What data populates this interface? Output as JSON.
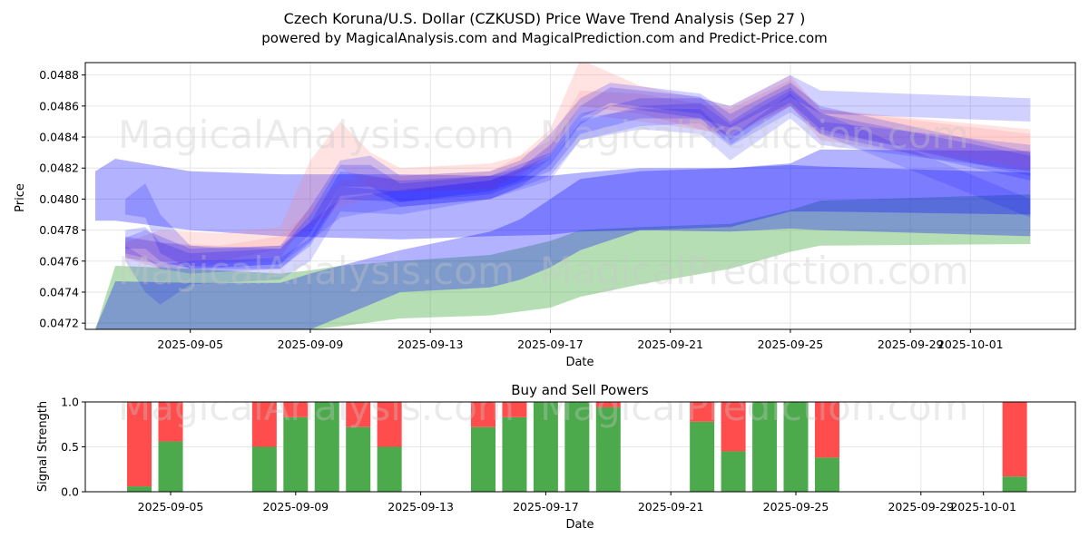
{
  "chart_data": [
    {
      "type": "area",
      "title": "Czech Koruna/U.S. Dollar (CZKUSD) Price Wave Trend Analysis (Sep 27 )",
      "subtitle": "powered by MagicalAnalysis.com and MagicalPrediction.com and Predict-Price.com",
      "xlabel": "Date",
      "ylabel": "Price",
      "xlim": [
        "2025-09-01T12:00",
        "2025-10-04T12:00"
      ],
      "ylim": [
        0.04716,
        0.04888
      ],
      "x_ticks": [
        "2025-09-05",
        "2025-09-09",
        "2025-09-13",
        "2025-09-17",
        "2025-09-21",
        "2025-09-25",
        "2025-09-29",
        "2025-10-01"
      ],
      "y_ticks": [
        "0.0472",
        "0.0474",
        "0.0476",
        "0.0478",
        "0.0480",
        "0.0482",
        "0.0484",
        "0.0486",
        "0.0488"
      ],
      "grid": true,
      "watermarks": [
        "MagicalAnalysis.com",
        "MagicalPrediction.com",
        "MagicalAnalysis.com",
        "MagicalPrediction.com"
      ],
      "bands": [
        {
          "name": "support-green",
          "color": "#2ca02c",
          "opacity": 0.35,
          "x": [
            "2025-09-01T20:00",
            "2025-09-02T12:00",
            "2025-09-05",
            "2025-09-08",
            "2025-09-09",
            "2025-09-10",
            "2025-09-12",
            "2025-09-15",
            "2025-09-17",
            "2025-09-18",
            "2025-09-20",
            "2025-09-23",
            "2025-09-25",
            "2025-09-26",
            "2025-10-03"
          ],
          "upper": [
            0.04716,
            0.04757,
            0.04755,
            0.04752,
            0.04754,
            0.04757,
            0.0476,
            0.04764,
            0.04773,
            0.0478,
            0.04782,
            0.04784,
            0.04793,
            0.04799,
            0.04803
          ],
          "lower": [
            0.04716,
            0.04716,
            0.04716,
            0.04716,
            0.04716,
            0.04718,
            0.04723,
            0.04725,
            0.0473,
            0.04737,
            0.04745,
            0.04755,
            0.04766,
            0.0477,
            0.04771
          ]
        },
        {
          "name": "channel-blue",
          "color": "#0000ff",
          "opacity": 0.3,
          "x": [
            "2025-09-01T20:00",
            "2025-09-02T12:00",
            "2025-09-05",
            "2025-09-08",
            "2025-09-09",
            "2025-09-12",
            "2025-09-15",
            "2025-09-16",
            "2025-09-17",
            "2025-09-18",
            "2025-09-20",
            "2025-09-23",
            "2025-09-25",
            "2025-09-26",
            "2025-10-03"
          ],
          "upper": [
            0.04716,
            0.04747,
            0.04746,
            0.04746,
            0.04752,
            0.04767,
            0.04779,
            0.04787,
            0.048,
            0.04813,
            0.04818,
            0.0482,
            0.04822,
            0.04821,
            0.04817
          ],
          "lower": [
            0.04716,
            0.04716,
            0.04716,
            0.04716,
            0.04716,
            0.0474,
            0.04743,
            0.04748,
            0.04756,
            0.04767,
            0.0478,
            0.04782,
            0.04792,
            0.04792,
            0.0479
          ]
        },
        {
          "name": "long-range-blue",
          "color": "#0000ff",
          "opacity": 0.3,
          "x": [
            "2025-09-01T20:00",
            "2025-09-02T12:00",
            "2025-09-05",
            "2025-09-08",
            "2025-09-12",
            "2025-09-15",
            "2025-09-17",
            "2025-09-18",
            "2025-09-20",
            "2025-09-23",
            "2025-09-25",
            "2025-09-26",
            "2025-10-03"
          ],
          "upper": [
            0.04818,
            0.04826,
            0.04818,
            0.04816,
            0.04816,
            0.04815,
            0.04815,
            0.04817,
            0.0482,
            0.0482,
            0.04823,
            0.04832,
            0.04831
          ],
          "lower": [
            0.04786,
            0.04786,
            0.0478,
            0.04776,
            0.04774,
            0.04776,
            0.04777,
            0.04779,
            0.0478,
            0.04779,
            0.04781,
            0.0478,
            0.04776
          ]
        },
        {
          "name": "prediction-pink-1",
          "color": "#ff8080",
          "opacity": 0.22,
          "x": [
            "2025-09-02T20:00",
            "2025-09-04",
            "2025-09-06",
            "2025-09-08",
            "2025-09-09",
            "2025-09-10",
            "2025-09-11",
            "2025-09-12",
            "2025-09-15",
            "2025-09-16",
            "2025-09-17",
            "2025-09-18",
            "2025-09-20",
            "2025-09-22",
            "2025-09-23",
            "2025-09-25",
            "2025-09-26",
            "2025-10-03"
          ],
          "upper": [
            0.04772,
            0.0478,
            0.04778,
            0.04782,
            0.04825,
            0.0485,
            0.0483,
            0.0482,
            0.04823,
            0.04828,
            0.04845,
            0.0489,
            0.04873,
            0.04865,
            0.0486,
            0.0488,
            0.04858,
            0.04845
          ],
          "lower": [
            0.04762,
            0.04755,
            0.04758,
            0.04762,
            0.0479,
            0.0482,
            0.04808,
            0.04805,
            0.04806,
            0.04815,
            0.0483,
            0.0486,
            0.04855,
            0.04845,
            0.0484,
            0.0486,
            0.04838,
            0.04818
          ]
        },
        {
          "name": "prediction-pink-2",
          "color": "#ff8080",
          "opacity": 0.2,
          "x": [
            "2025-09-02T20:00",
            "2025-09-04",
            "2025-09-06",
            "2025-09-08",
            "2025-09-10",
            "2025-09-12",
            "2025-09-15",
            "2025-09-17",
            "2025-09-18",
            "2025-09-20",
            "2025-09-23",
            "2025-09-25",
            "2025-09-26",
            "2025-10-03"
          ],
          "upper": [
            0.04775,
            0.04772,
            0.0477,
            0.04776,
            0.04812,
            0.04815,
            0.04818,
            0.04838,
            0.0487,
            0.04868,
            0.04858,
            0.04877,
            0.04858,
            0.04842
          ],
          "lower": [
            0.04762,
            0.0476,
            0.0476,
            0.04768,
            0.04795,
            0.04805,
            0.04807,
            0.04828,
            0.04855,
            0.0485,
            0.04842,
            0.0486,
            0.04843,
            0.0482
          ]
        },
        {
          "name": "wave-blue-1",
          "color": "#0000ff",
          "opacity": 0.18,
          "x": [
            "2025-09-02T20:00",
            "2025-09-03T12:00",
            "2025-09-04",
            "2025-09-05",
            "2025-09-08",
            "2025-09-09",
            "2025-09-10",
            "2025-09-11",
            "2025-09-12",
            "2025-09-15",
            "2025-09-16",
            "2025-09-17",
            "2025-09-18",
            "2025-09-19",
            "2025-09-22",
            "2025-09-23",
            "2025-09-24",
            "2025-09-25",
            "2025-09-26",
            "2025-10-03"
          ],
          "upper": [
            0.04775,
            0.0478,
            0.04776,
            0.04768,
            0.0477,
            0.04795,
            0.04825,
            0.04828,
            0.04815,
            0.04818,
            0.04825,
            0.04842,
            0.04865,
            0.04875,
            0.04868,
            0.04855,
            0.04865,
            0.04875,
            0.0486,
            0.0483
          ],
          "lower": [
            0.04768,
            0.04768,
            0.0476,
            0.04755,
            0.04758,
            0.04778,
            0.04808,
            0.04808,
            0.04798,
            0.04805,
            0.04812,
            0.04826,
            0.04852,
            0.04862,
            0.04855,
            0.04838,
            0.04852,
            0.04862,
            0.04845,
            0.04815
          ]
        },
        {
          "name": "wave-blue-2",
          "color": "#0000ff",
          "opacity": 0.18,
          "x": [
            "2025-09-02T20:00",
            "2025-09-03T12:00",
            "2025-09-04",
            "2025-09-05",
            "2025-09-08",
            "2025-09-09",
            "2025-09-10",
            "2025-09-11",
            "2025-09-12",
            "2025-09-15",
            "2025-09-16",
            "2025-09-17",
            "2025-09-18",
            "2025-09-19",
            "2025-09-22",
            "2025-09-23",
            "2025-09-24",
            "2025-09-25",
            "2025-09-26",
            "2025-10-03"
          ],
          "upper": [
            0.0478,
            0.04782,
            0.04772,
            0.04765,
            0.04768,
            0.0479,
            0.04822,
            0.04822,
            0.0481,
            0.04815,
            0.0482,
            0.04835,
            0.0486,
            0.04872,
            0.04866,
            0.0485,
            0.04862,
            0.04872,
            0.04855,
            0.04828
          ],
          "lower": [
            0.04765,
            0.04762,
            0.04755,
            0.04752,
            0.04755,
            0.04772,
            0.04802,
            0.04804,
            0.04795,
            0.048,
            0.04808,
            0.04822,
            0.04848,
            0.0486,
            0.04852,
            0.04835,
            0.04848,
            0.0486,
            0.04842,
            0.04812
          ]
        },
        {
          "name": "wave-blue-3",
          "color": "#0000ff",
          "opacity": 0.18,
          "x": [
            "2025-09-02T20:00",
            "2025-09-03T12:00",
            "2025-09-04",
            "2025-09-05",
            "2025-09-08",
            "2025-09-09",
            "2025-09-10",
            "2025-09-12",
            "2025-09-15",
            "2025-09-17",
            "2025-09-18",
            "2025-09-20",
            "2025-09-22",
            "2025-09-23",
            "2025-09-25",
            "2025-09-26",
            "2025-10-03"
          ],
          "upper": [
            0.048,
            0.0481,
            0.0479,
            0.0477,
            0.04768,
            0.04785,
            0.04818,
            0.04812,
            0.04815,
            0.0483,
            0.04855,
            0.04865,
            0.04865,
            0.0486,
            0.0488,
            0.0487,
            0.04865
          ],
          "lower": [
            0.0479,
            0.04788,
            0.04765,
            0.04755,
            0.04755,
            0.0477,
            0.048,
            0.04798,
            0.04803,
            0.04818,
            0.04842,
            0.04852,
            0.04852,
            0.04846,
            0.04866,
            0.04855,
            0.0485
          ]
        },
        {
          "name": "wave-blue-4",
          "color": "#0000ff",
          "opacity": 0.16,
          "x": [
            "2025-09-02T20:00",
            "2025-09-03T12:00",
            "2025-09-04",
            "2025-09-05",
            "2025-09-08",
            "2025-09-09",
            "2025-09-10",
            "2025-09-12",
            "2025-09-15",
            "2025-09-17",
            "2025-09-18",
            "2025-09-20",
            "2025-09-22",
            "2025-09-23",
            "2025-09-25",
            "2025-09-26",
            "2025-10-03"
          ],
          "upper": [
            0.0477,
            0.04762,
            0.04758,
            0.0476,
            0.04762,
            0.04775,
            0.04808,
            0.04805,
            0.04812,
            0.04828,
            0.04852,
            0.04858,
            0.04858,
            0.0484,
            0.04868,
            0.0485,
            0.04835
          ],
          "lower": [
            0.0476,
            0.0474,
            0.04732,
            0.04745,
            0.04748,
            0.0476,
            0.04792,
            0.0479,
            0.048,
            0.04815,
            0.04838,
            0.04845,
            0.04842,
            0.04825,
            0.04852,
            0.04835,
            0.04818
          ]
        },
        {
          "name": "wave-blue-5",
          "color": "#0000ff",
          "opacity": 0.14,
          "x": [
            "2025-09-02T20:00",
            "2025-09-04",
            "2025-09-06",
            "2025-09-08",
            "2025-09-10",
            "2025-09-12",
            "2025-09-15",
            "2025-09-17",
            "2025-09-18",
            "2025-09-20",
            "2025-09-22",
            "2025-09-23",
            "2025-09-25",
            "2025-09-26",
            "2025-10-03"
          ],
          "upper": [
            0.04776,
            0.04772,
            0.04768,
            0.0477,
            0.048,
            0.04806,
            0.04812,
            0.04826,
            0.0485,
            0.0486,
            0.04862,
            0.04848,
            0.0487,
            0.04856,
            0.048
          ],
          "lower": [
            0.04762,
            0.04758,
            0.04756,
            0.04758,
            0.04788,
            0.04795,
            0.048,
            0.04812,
            0.04838,
            0.04847,
            0.04849,
            0.04834,
            0.04856,
            0.04842,
            0.04788
          ]
        }
      ]
    },
    {
      "type": "bar",
      "stacked": true,
      "title": "Buy and Sell Powers",
      "xlabel": "Date",
      "ylabel": "Signal Strength",
      "ylim": [
        0,
        1
      ],
      "y_ticks": [
        "0.0",
        "0.5",
        "1.0"
      ],
      "x_ticks": [
        "2025-09-05",
        "2025-09-09",
        "2025-09-13",
        "2025-09-17",
        "2025-09-21",
        "2025-09-25",
        "2025-09-29",
        "2025-10-01"
      ],
      "colors": {
        "buy": "#4caa4c",
        "sell": "#ff4c4c"
      },
      "categories": [
        "2025-09-04",
        "2025-09-05",
        "2025-09-08",
        "2025-09-09",
        "2025-09-10",
        "2025-09-11",
        "2025-09-12",
        "2025-09-15",
        "2025-09-16",
        "2025-09-17",
        "2025-09-18",
        "2025-09-19",
        "2025-09-22",
        "2025-09-23",
        "2025-09-24",
        "2025-09-25",
        "2025-09-26",
        "2025-10-02"
      ],
      "series": [
        {
          "name": "Buy",
          "values": [
            0.06,
            0.56,
            0.5,
            0.83,
            1.0,
            0.72,
            0.5,
            0.72,
            0.83,
            1.0,
            1.0,
            0.94,
            0.78,
            0.45,
            1.0,
            1.0,
            0.38,
            0.17
          ]
        },
        {
          "name": "Sell",
          "values": [
            0.94,
            0.44,
            0.5,
            0.17,
            0.0,
            0.28,
            0.5,
            0.28,
            0.17,
            0.0,
            0.0,
            0.06,
            0.22,
            0.55,
            0.0,
            0.0,
            0.62,
            0.83
          ]
        }
      ]
    }
  ]
}
